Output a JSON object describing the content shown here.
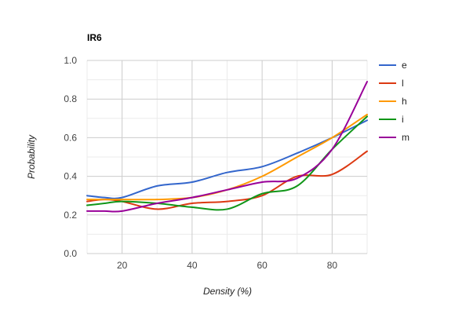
{
  "chart_data": {
    "type": "line",
    "title": "IR6",
    "xlabel": "Density (%)",
    "ylabel": "Probability",
    "xlim": [
      10,
      90
    ],
    "ylim": [
      0,
      1
    ],
    "x_ticks": [
      "20",
      "40",
      "60",
      "80"
    ],
    "y_ticks": [
      "0.0",
      "0.2",
      "0.4",
      "0.6",
      "0.8",
      "1.0"
    ],
    "x_tick_values": [
      20,
      40,
      60,
      80
    ],
    "y_tick_values": [
      0,
      0.2,
      0.4,
      0.6,
      0.8,
      1.0
    ],
    "grid": true,
    "legend": "right",
    "x": [
      10,
      15,
      20,
      30,
      40,
      50,
      60,
      70,
      80,
      90
    ],
    "series": [
      {
        "name": "e",
        "color": "#3366cc",
        "values": [
          0.3,
          0.29,
          0.29,
          0.35,
          0.37,
          0.42,
          0.45,
          0.52,
          0.6,
          0.69
        ]
      },
      {
        "name": "l",
        "color": "#dc3912",
        "values": [
          0.27,
          0.28,
          0.27,
          0.23,
          0.26,
          0.27,
          0.3,
          0.4,
          0.41,
          0.53
        ]
      },
      {
        "name": "h",
        "color": "#ff9900",
        "values": [
          0.28,
          0.28,
          0.28,
          0.28,
          0.29,
          0.33,
          0.4,
          0.5,
          0.6,
          0.72
        ]
      },
      {
        "name": "i",
        "color": "#109618",
        "values": [
          0.25,
          0.26,
          0.27,
          0.26,
          0.24,
          0.23,
          0.31,
          0.35,
          0.54,
          0.71
        ]
      },
      {
        "name": "m",
        "color": "#990099",
        "values": [
          0.22,
          0.22,
          0.22,
          0.26,
          0.29,
          0.33,
          0.37,
          0.39,
          0.54,
          0.89
        ]
      }
    ]
  }
}
